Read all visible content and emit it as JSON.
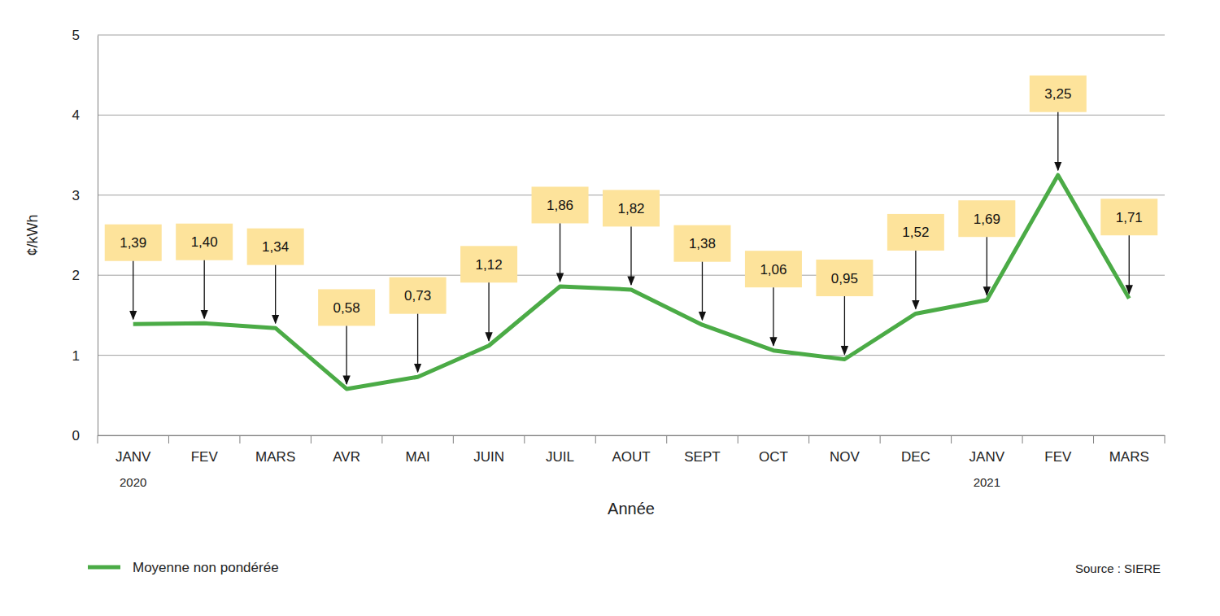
{
  "chart_data": {
    "type": "line",
    "categories": [
      "JANV",
      "FEV",
      "MARS",
      "AVR",
      "MAI",
      "JUIN",
      "JUIL",
      "AOUT",
      "SEPT",
      "OCT",
      "NOV",
      "DEC",
      "JANV",
      "FEV",
      "MARS"
    ],
    "year_labels": [
      "2020",
      null,
      null,
      null,
      null,
      null,
      null,
      null,
      null,
      null,
      null,
      null,
      "2021",
      null,
      null
    ],
    "series": [
      {
        "name": "Moyenne non pondérée",
        "color": "#4bab46",
        "values": [
          1.39,
          1.4,
          1.34,
          0.58,
          0.73,
          1.12,
          1.86,
          1.82,
          1.38,
          1.06,
          0.95,
          1.52,
          1.69,
          3.25,
          1.71
        ],
        "value_labels": [
          "1,39",
          "1,40",
          "1,34",
          "0,58",
          "0,73",
          "1,12",
          "1,86",
          "1,82",
          "1,38",
          "1,06",
          "0,95",
          "1,52",
          "1,69",
          "3,25",
          "1,71"
        ]
      }
    ],
    "x_label": "Année",
    "y_label": "¢/kWh",
    "source": "Source : SIERE",
    "ylim": [
      0,
      5
    ],
    "yticks": [
      0,
      1,
      2,
      3,
      4,
      5
    ],
    "grid": true,
    "legend": "bottom-left",
    "data_labels": true
  }
}
